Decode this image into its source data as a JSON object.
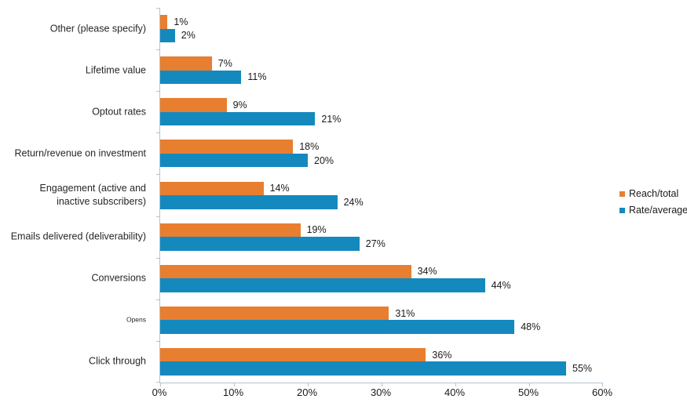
{
  "chart_data": {
    "type": "bar",
    "orientation": "horizontal",
    "title": "",
    "xlabel": "",
    "ylabel": "",
    "xlim": [
      0,
      60
    ],
    "x_tick_labels": [
      "0%",
      "10%",
      "20%",
      "30%",
      "40%",
      "50%",
      "60%"
    ],
    "grid": false,
    "legend_position": "right",
    "value_suffix": "%",
    "categories": [
      "Other (please specify)",
      "Lifetime value",
      "Optout rates",
      "Return/revenue on investment",
      "Engagement (active and\ninactive subscribers)",
      "Emails delivered (deliverability)",
      "Conversions",
      "Opens",
      "Click through"
    ],
    "small_label_categories": [
      "Opens"
    ],
    "series": [
      {
        "name": "Reach/total",
        "color": "#e87e30",
        "values": [
          1,
          7,
          9,
          18,
          14,
          19,
          34,
          31,
          36
        ]
      },
      {
        "name": "Rate/average",
        "color": "#1489be",
        "values": [
          2,
          11,
          21,
          20,
          24,
          27,
          44,
          48,
          55
        ]
      }
    ],
    "value_labels": {
      "Reach/total": [
        "1%",
        "7%",
        "9%",
        "18%",
        "14%",
        "19%",
        "34%",
        "31%",
        "36%"
      ],
      "Rate/average": [
        "2%",
        "11%",
        "21%",
        "20%",
        "24%",
        "27%",
        "44%",
        "48%",
        "55%"
      ]
    },
    "axis_color": "#b3c4ce",
    "text_color": "#1a1a1a"
  },
  "legend": {
    "items": [
      {
        "label": "Reach/total",
        "color": "#e87e30"
      },
      {
        "label": "Rate/average",
        "color": "#1489be"
      }
    ]
  }
}
